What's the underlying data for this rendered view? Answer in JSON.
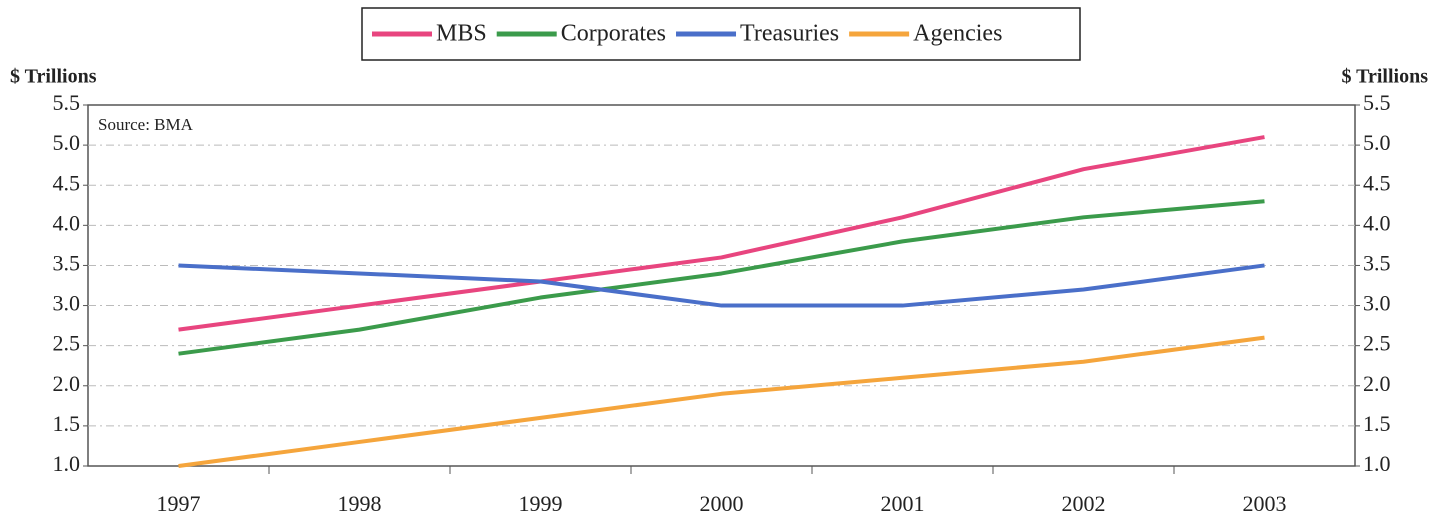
{
  "chart_data": {
    "type": "line",
    "y_label": "$ Trillions",
    "y2_label": "$ Trillions",
    "annotation": "Source: BMA",
    "categories": [
      "1997",
      "1998",
      "1999",
      "2000",
      "2001",
      "2002",
      "2003"
    ],
    "series": [
      {
        "name": "MBS",
        "color": "#e8457f",
        "values": [
          2.7,
          3.0,
          3.3,
          3.6,
          4.1,
          4.7,
          5.1
        ]
      },
      {
        "name": "Corporates",
        "color": "#3b9b4b",
        "values": [
          2.4,
          2.7,
          3.1,
          3.4,
          3.8,
          4.1,
          4.3
        ]
      },
      {
        "name": "Treasuries",
        "color": "#4a6fc9",
        "values": [
          3.5,
          3.4,
          3.3,
          3.0,
          3.0,
          3.2,
          3.5
        ]
      },
      {
        "name": "Agencies",
        "color": "#f5a53c",
        "values": [
          1.0,
          1.3,
          1.6,
          1.9,
          2.1,
          2.3,
          2.6
        ]
      }
    ],
    "ylim": [
      1.0,
      5.5
    ],
    "yticks": [
      {
        "value": 1,
        "label": "1.0"
      },
      {
        "value": 1.5,
        "label": "1.5"
      },
      {
        "value": 2,
        "label": "2.0"
      },
      {
        "value": 2.5,
        "label": "2.5"
      },
      {
        "value": 3,
        "label": "3.0"
      },
      {
        "value": 3.5,
        "label": "3.5"
      },
      {
        "value": 4,
        "label": "4.0"
      },
      {
        "value": 4.5,
        "label": "4.5"
      },
      {
        "value": 5,
        "label": "5.0"
      },
      {
        "value": 5.5,
        "label": "5.5"
      }
    ],
    "y2lim": [
      1.0,
      5.5
    ],
    "y2ticks": [
      {
        "value": 1,
        "label": "1.0"
      },
      {
        "value": 1.5,
        "label": "1.5"
      },
      {
        "value": 2,
        "label": "2.0"
      },
      {
        "value": 2.5,
        "label": "2.5"
      },
      {
        "value": 3,
        "label": "3.0"
      },
      {
        "value": 3.5,
        "label": "3.5"
      },
      {
        "value": 4,
        "label": "4.0"
      },
      {
        "value": 4.5,
        "label": "4.5"
      },
      {
        "value": 5,
        "label": "5.0"
      },
      {
        "value": 5.5,
        "label": "5.5"
      }
    ],
    "grid": true,
    "legend": "top"
  }
}
